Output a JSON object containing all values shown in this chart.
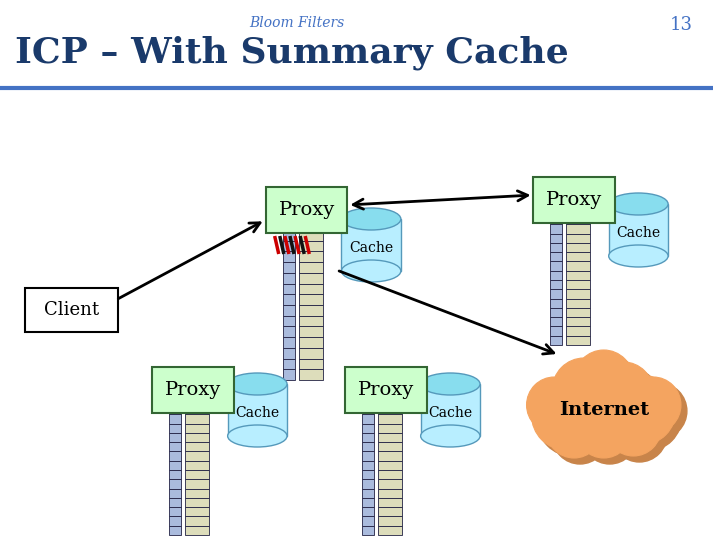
{
  "title": "Bloom Filters",
  "slide_number": "13",
  "heading": "ICP – With Summary Cache",
  "background_color": "#ffffff",
  "heading_color": "#1a3a6b",
  "title_color": "#4472c4",
  "proxy_box_color": "#ccffcc",
  "proxy_box_edge": "#336633",
  "cache_body_color": "#b8eeff",
  "cache_top_color": "#88ddee",
  "cache_edge_color": "#5599bb",
  "client_box_color": "#ffffff",
  "client_box_edge": "#000000",
  "internet_color": "#f4a460",
  "internet_shadow": "#c8844a",
  "db_col1_color": "#aabbdd",
  "db_col2_color": "#ddddbb",
  "db_edge_color": "#222244",
  "red_stripe_color": "#cc0000",
  "arrow_color": "#000000",
  "header_line_color": "#4472c4"
}
